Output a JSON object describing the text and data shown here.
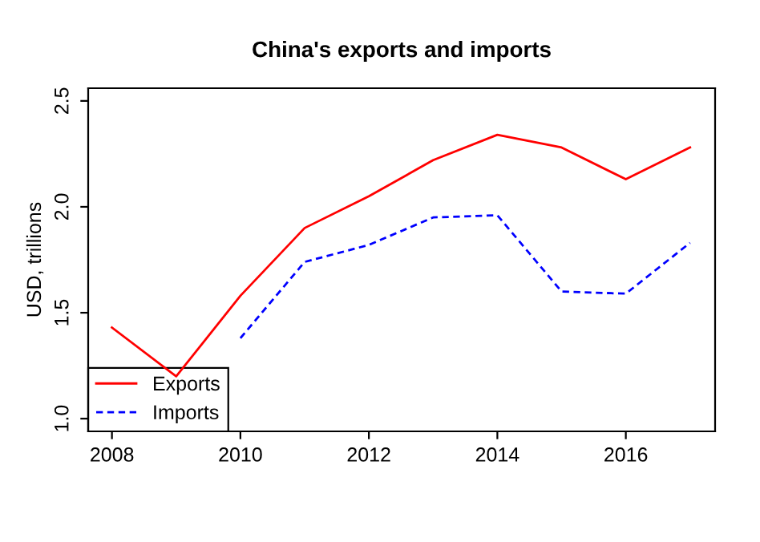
{
  "chart_data": {
    "type": "line",
    "title": "China's exports and imports",
    "ylabel": "USD, trillions",
    "x": [
      2008,
      2009,
      2010,
      2011,
      2012,
      2013,
      2014,
      2015,
      2016,
      2017
    ],
    "series": [
      {
        "name": "Exports",
        "color": "#ff0000",
        "line_style": "solid",
        "values": [
          1.43,
          1.2,
          1.58,
          1.9,
          2.05,
          2.22,
          2.34,
          2.28,
          2.13,
          2.28
        ]
      },
      {
        "name": "Imports",
        "color": "#0000ff",
        "line_style": "dashed",
        "values": [
          null,
          null,
          1.38,
          1.74,
          1.82,
          1.95,
          1.96,
          1.6,
          1.59,
          1.83
        ]
      }
    ],
    "xlim": [
      2007.63,
      2017.39
    ],
    "ylim": [
      0.94,
      2.56
    ],
    "xticks": [
      2008,
      2010,
      2012,
      2014,
      2016
    ],
    "yticks": [
      {
        "value": 1.0,
        "label": "1.0"
      },
      {
        "value": 1.5,
        "label": "1.5"
      },
      {
        "value": 2.0,
        "label": "2.0"
      },
      {
        "value": 2.5,
        "label": "2.5"
      }
    ],
    "grid": false,
    "legend": "bottom left",
    "marker": "none"
  }
}
